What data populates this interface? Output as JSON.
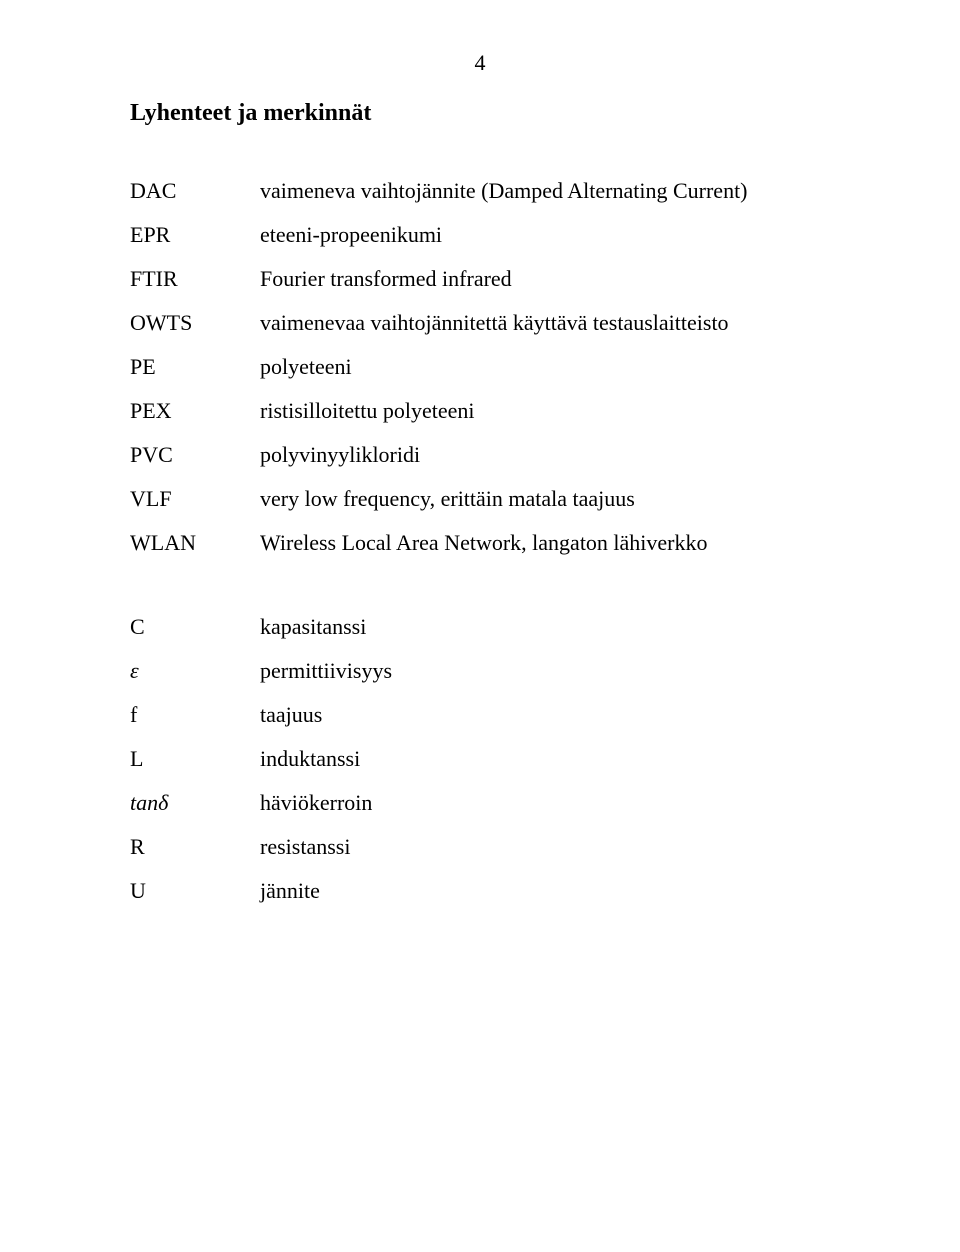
{
  "page_number": "4",
  "heading": "Lyhenteet ja merkinnät",
  "abbr": [
    {
      "term": "DAC",
      "desc": "vaimeneva vaihtojännite (Damped Alternating Current)"
    },
    {
      "term": "EPR",
      "desc": "eteeni-propeenikumi"
    },
    {
      "term": "FTIR",
      "desc": "Fourier transformed infrared"
    },
    {
      "term": "OWTS",
      "desc": "vaimenevaa vaihtojännitettä käyttävä testauslaitteisto"
    },
    {
      "term": "PE",
      "desc": "polyeteeni"
    },
    {
      "term": "PEX",
      "desc": "ristisilloitettu polyeteeni"
    },
    {
      "term": "PVC",
      "desc": "polyvinyylikloridi"
    },
    {
      "term": "VLF",
      "desc": "very low frequency, erittäin matala taajuus"
    },
    {
      "term": "WLAN",
      "desc": "Wireless Local Area Network, langaton lähiverkko"
    }
  ],
  "sym": [
    {
      "term": "C",
      "italic": false,
      "desc": "kapasitanssi"
    },
    {
      "term": "ε",
      "italic": true,
      "desc": "permittiivisyys"
    },
    {
      "term": "f",
      "italic": false,
      "desc": "taajuus"
    },
    {
      "term": "L",
      "italic": false,
      "desc": "induktanssi"
    },
    {
      "term": "tanδ",
      "italic": true,
      "desc": "häviökerroin"
    },
    {
      "term": "R",
      "italic": false,
      "desc": "resistanssi"
    },
    {
      "term": "U",
      "italic": false,
      "desc": "jännite"
    }
  ]
}
